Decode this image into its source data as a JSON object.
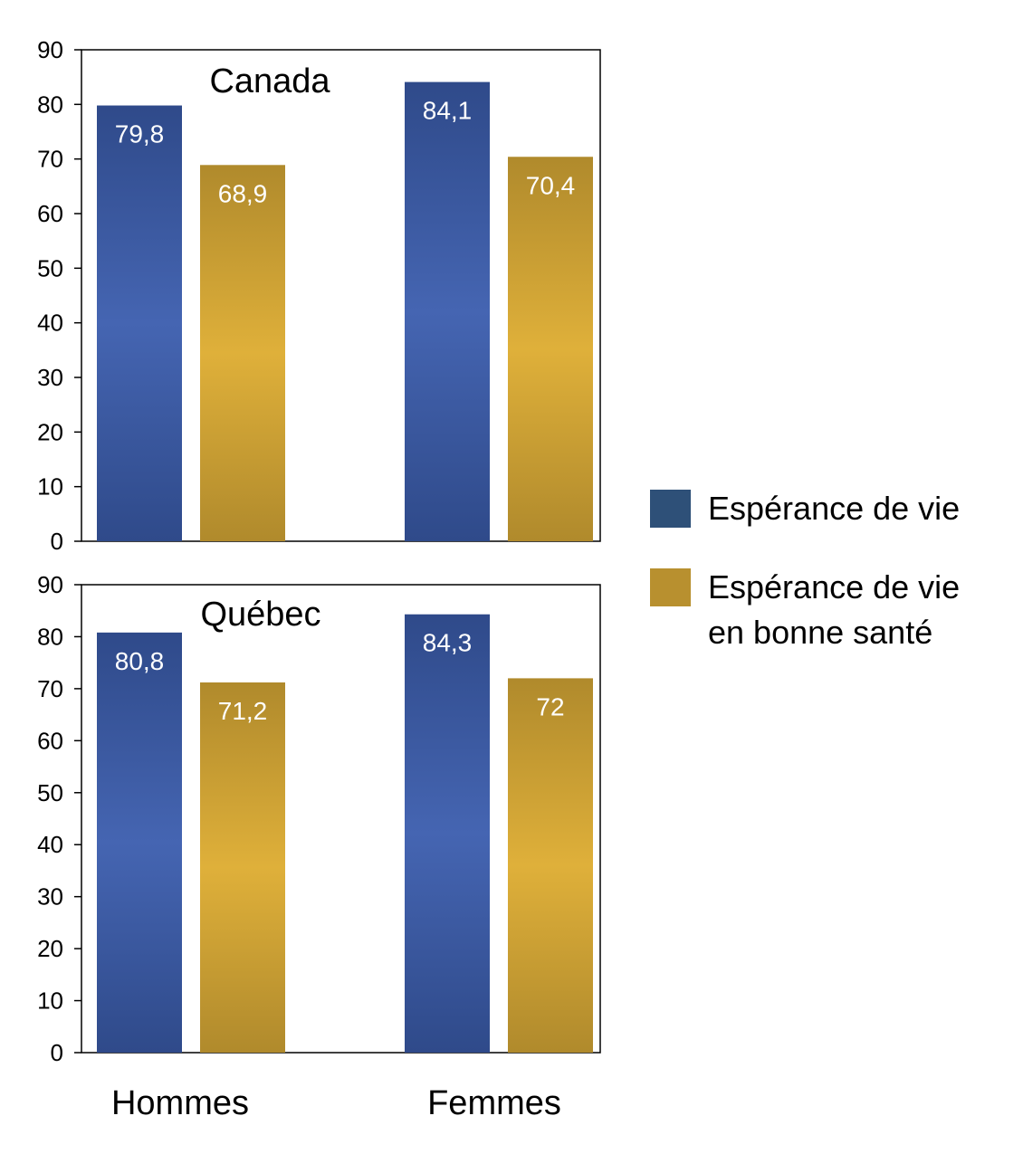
{
  "chart_data": [
    {
      "type": "bar",
      "title": "Canada",
      "categories": [
        "Hommes",
        "Femmes"
      ],
      "series": [
        {
          "name": "Espérance de vie",
          "values": [
            79.8,
            84.1
          ],
          "labels": [
            "79,8",
            "84,1"
          ]
        },
        {
          "name": "Espérance de vie en bonne santé",
          "values": [
            68.9,
            70.4
          ],
          "labels": [
            "68,9",
            "70,4"
          ]
        }
      ],
      "ylim": [
        0,
        90
      ],
      "yticks": [
        "0",
        "10",
        "20",
        "30",
        "40",
        "50",
        "60",
        "70",
        "80",
        "90"
      ],
      "xlabel": "",
      "ylabel": "",
      "grid": false
    },
    {
      "type": "bar",
      "title": "Québec",
      "categories": [
        "Hommes",
        "Femmes"
      ],
      "series": [
        {
          "name": "Espérance de vie",
          "values": [
            80.8,
            84.3
          ],
          "labels": [
            "80,8",
            "84,3"
          ]
        },
        {
          "name": "Espérance de vie en bonne santé",
          "values": [
            71.2,
            72
          ],
          "labels": [
            "71,2",
            "72"
          ]
        }
      ],
      "ylim": [
        0,
        90
      ],
      "yticks": [
        "0",
        "10",
        "20",
        "30",
        "40",
        "50",
        "60",
        "70",
        "80",
        "90"
      ],
      "xlabel": "",
      "ylabel": "",
      "grid": false
    }
  ],
  "legend": {
    "placement": "right",
    "items": [
      {
        "label": "Espérance de vie",
        "color": "#2e5078"
      },
      {
        "label": "Espérance de vie\nen bonne santé",
        "color": "#b8902f"
      }
    ]
  },
  "colors": {
    "series_1_light": "#4565b2",
    "series_1_dark": "#2f4a8a",
    "series_2_light": "#dfb03a",
    "series_2_dark": "#b08a2c"
  }
}
